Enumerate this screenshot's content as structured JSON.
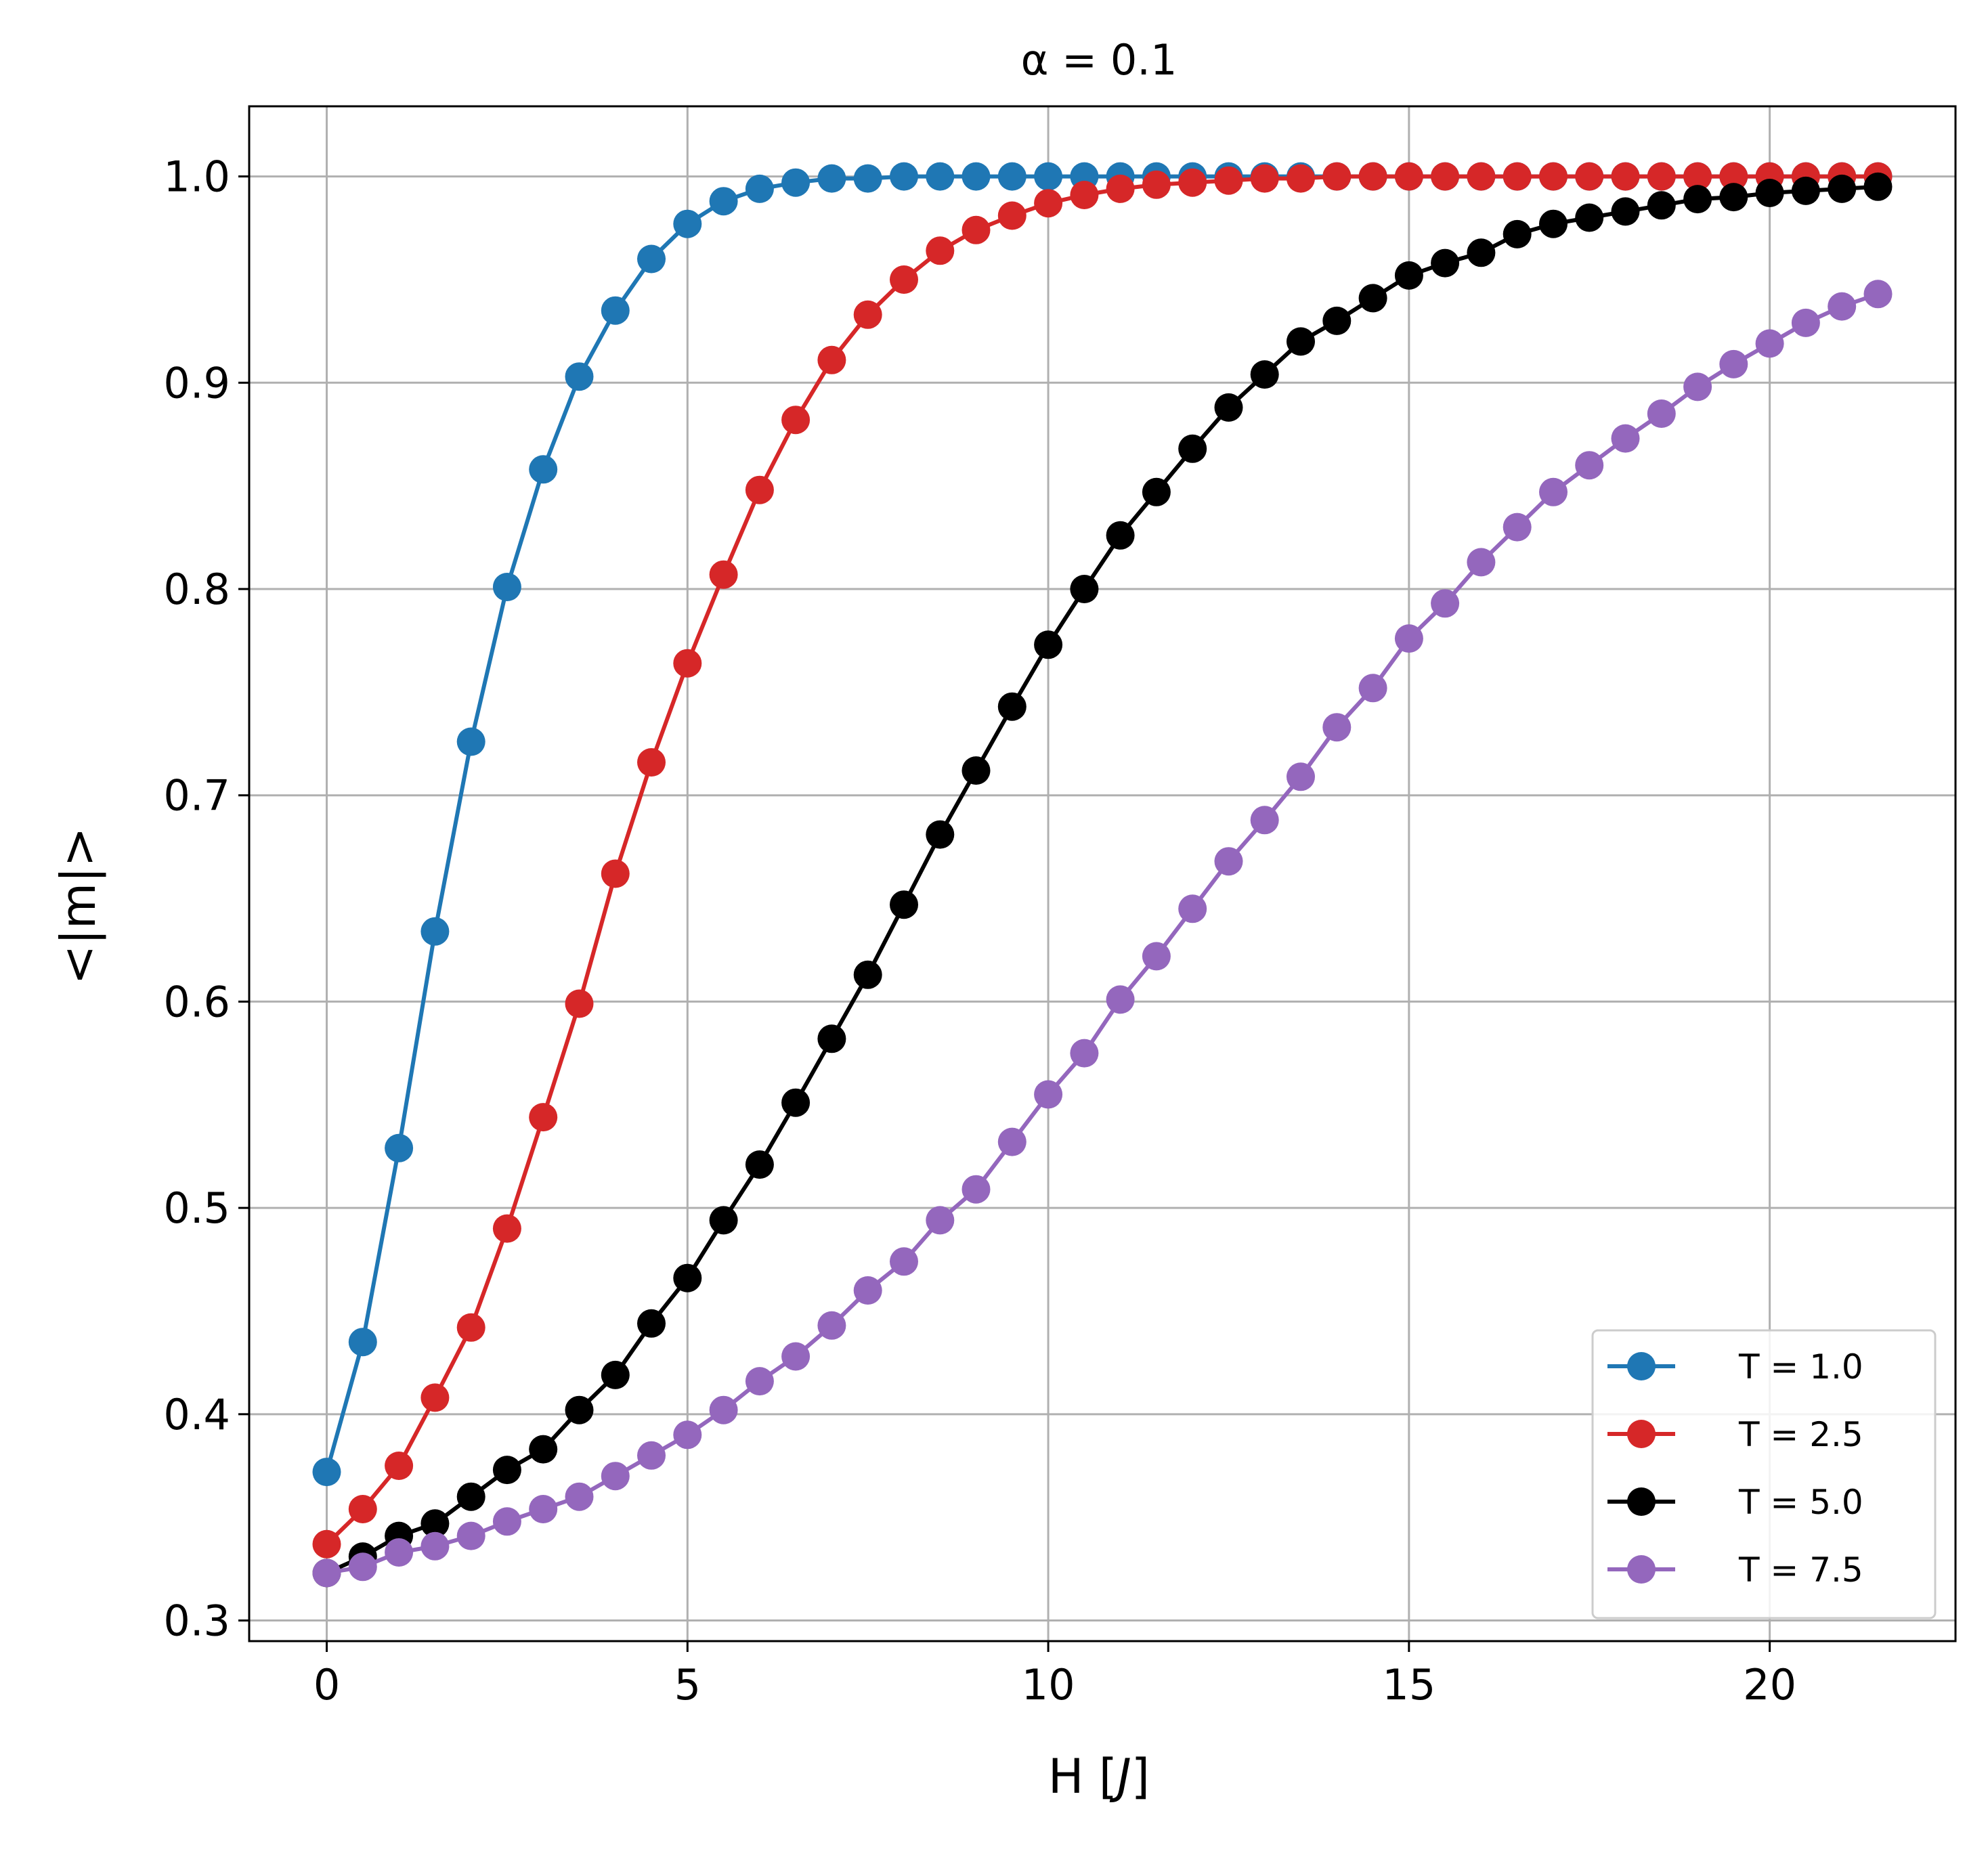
{
  "chart_data": {
    "type": "line",
    "title": "α = 0.1",
    "xlabel": "H [J]",
    "xlabel_main": "H [",
    "xlabel_unit": "J",
    "xlabel_close": "]",
    "ylabel": "<|m|>",
    "xlim": [
      -1.075,
      22.575
    ],
    "ylim": [
      0.29,
      1.034
    ],
    "xticks": [
      0,
      5,
      10,
      15,
      20
    ],
    "xtick_labels": [
      "0",
      "5",
      "10",
      "15",
      "20"
    ],
    "yticks": [
      0.3,
      0.4,
      0.5,
      0.6,
      0.7,
      0.8,
      0.9,
      1.0
    ],
    "ytick_labels": [
      "0.3",
      "0.4",
      "0.5",
      "0.6",
      "0.7",
      "0.8",
      "0.9",
      "1.0"
    ],
    "grid": true,
    "legend_position": "lower right",
    "x": [
      0,
      0.5,
      1,
      1.5,
      2,
      2.5,
      3,
      3.5,
      4,
      4.5,
      5,
      5.5,
      6,
      6.5,
      7,
      7.5,
      8,
      8.5,
      9,
      9.5,
      10,
      10.5,
      11,
      11.5,
      12,
      12.5,
      13,
      13.5,
      14,
      14.5,
      15,
      15.5,
      16,
      16.5,
      17,
      17.5,
      18,
      18.5,
      19,
      19.5,
      20,
      20.5,
      21,
      21.5
    ],
    "series": [
      {
        "name": "T = 1.0",
        "color": "#1f77b4",
        "values": [
          0.372,
          0.435,
          0.529,
          0.634,
          0.726,
          0.801,
          0.858,
          0.903,
          0.935,
          0.96,
          0.977,
          0.988,
          0.994,
          0.997,
          0.999,
          0.999,
          1.0,
          1.0,
          1.0,
          1.0,
          1.0,
          1.0,
          1.0,
          1.0,
          1.0,
          1.0,
          1.0,
          1.0,
          1.0,
          1.0,
          1.0,
          1.0,
          1.0,
          1.0,
          1.0,
          1.0,
          1.0,
          1.0,
          1.0,
          1.0,
          1.0,
          1.0,
          1.0,
          1.0
        ]
      },
      {
        "name": "T = 2.5",
        "color": "#d62728",
        "values": [
          0.337,
          0.354,
          0.375,
          0.408,
          0.442,
          0.49,
          0.544,
          0.599,
          0.662,
          0.716,
          0.764,
          0.807,
          0.848,
          0.882,
          0.911,
          0.933,
          0.95,
          0.964,
          0.974,
          0.981,
          0.987,
          0.991,
          0.994,
          0.996,
          0.997,
          0.998,
          0.999,
          0.999,
          1.0,
          1.0,
          1.0,
          1.0,
          1.0,
          1.0,
          1.0,
          1.0,
          1.0,
          1.0,
          1.0,
          1.0,
          1.0,
          1.0,
          1.0,
          1.0
        ]
      },
      {
        "name": "T = 5.0",
        "color": "#000000",
        "values": [
          0.323,
          0.331,
          0.341,
          0.347,
          0.36,
          0.373,
          0.383,
          0.402,
          0.419,
          0.444,
          0.466,
          0.494,
          0.521,
          0.551,
          0.582,
          0.613,
          0.647,
          0.681,
          0.712,
          0.743,
          0.773,
          0.8,
          0.826,
          0.847,
          0.868,
          0.888,
          0.904,
          0.92,
          0.93,
          0.941,
          0.952,
          0.958,
          0.963,
          0.972,
          0.977,
          0.98,
          0.983,
          0.986,
          0.989,
          0.99,
          0.992,
          0.993,
          0.994,
          0.995
        ]
      },
      {
        "name": "T = 7.5",
        "color": "#9467bd",
        "values": [
          0.323,
          0.326,
          0.333,
          0.336,
          0.341,
          0.348,
          0.354,
          0.36,
          0.37,
          0.38,
          0.39,
          0.402,
          0.416,
          0.428,
          0.443,
          0.46,
          0.474,
          0.494,
          0.509,
          0.532,
          0.555,
          0.575,
          0.601,
          0.622,
          0.645,
          0.668,
          0.688,
          0.709,
          0.733,
          0.752,
          0.776,
          0.793,
          0.813,
          0.83,
          0.847,
          0.86,
          0.873,
          0.885,
          0.898,
          0.909,
          0.919,
          0.929,
          0.937,
          0.943
        ]
      }
    ]
  }
}
